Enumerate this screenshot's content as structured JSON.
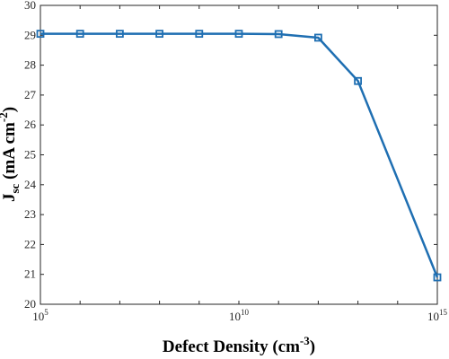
{
  "chart_data": {
    "type": "line",
    "x_scale": "log",
    "xlim": [
      100000,
      1000000000000000
    ],
    "ylim": [
      20,
      30
    ],
    "y_ticks": [
      20,
      21,
      22,
      23,
      24,
      25,
      26,
      27,
      28,
      29,
      30
    ],
    "x_tick_exponents": [
      5,
      10,
      15
    ],
    "xlabel": "Defect Density (cm-3)",
    "xlabel_parts": {
      "main": "Defect Density (cm",
      "sup": "-3",
      "end": ")"
    },
    "ylabel": "Jsc (mA cm-2)",
    "ylabel_parts": {
      "main": "J",
      "sub": "sc",
      "mid": " (mA cm",
      "sup": "-2",
      "end": ")"
    },
    "grid": false,
    "legend": "none",
    "line_color": "#1f6fb2",
    "series": [
      {
        "x": [
          100000,
          1000000,
          10000000,
          100000000,
          1000000000,
          10000000000,
          100000000000,
          1000000000000,
          10000000000000,
          1000000000000000
        ],
        "y": [
          29.05,
          29.05,
          29.05,
          29.05,
          29.05,
          29.05,
          29.04,
          28.92,
          27.47,
          20.9
        ]
      }
    ]
  }
}
